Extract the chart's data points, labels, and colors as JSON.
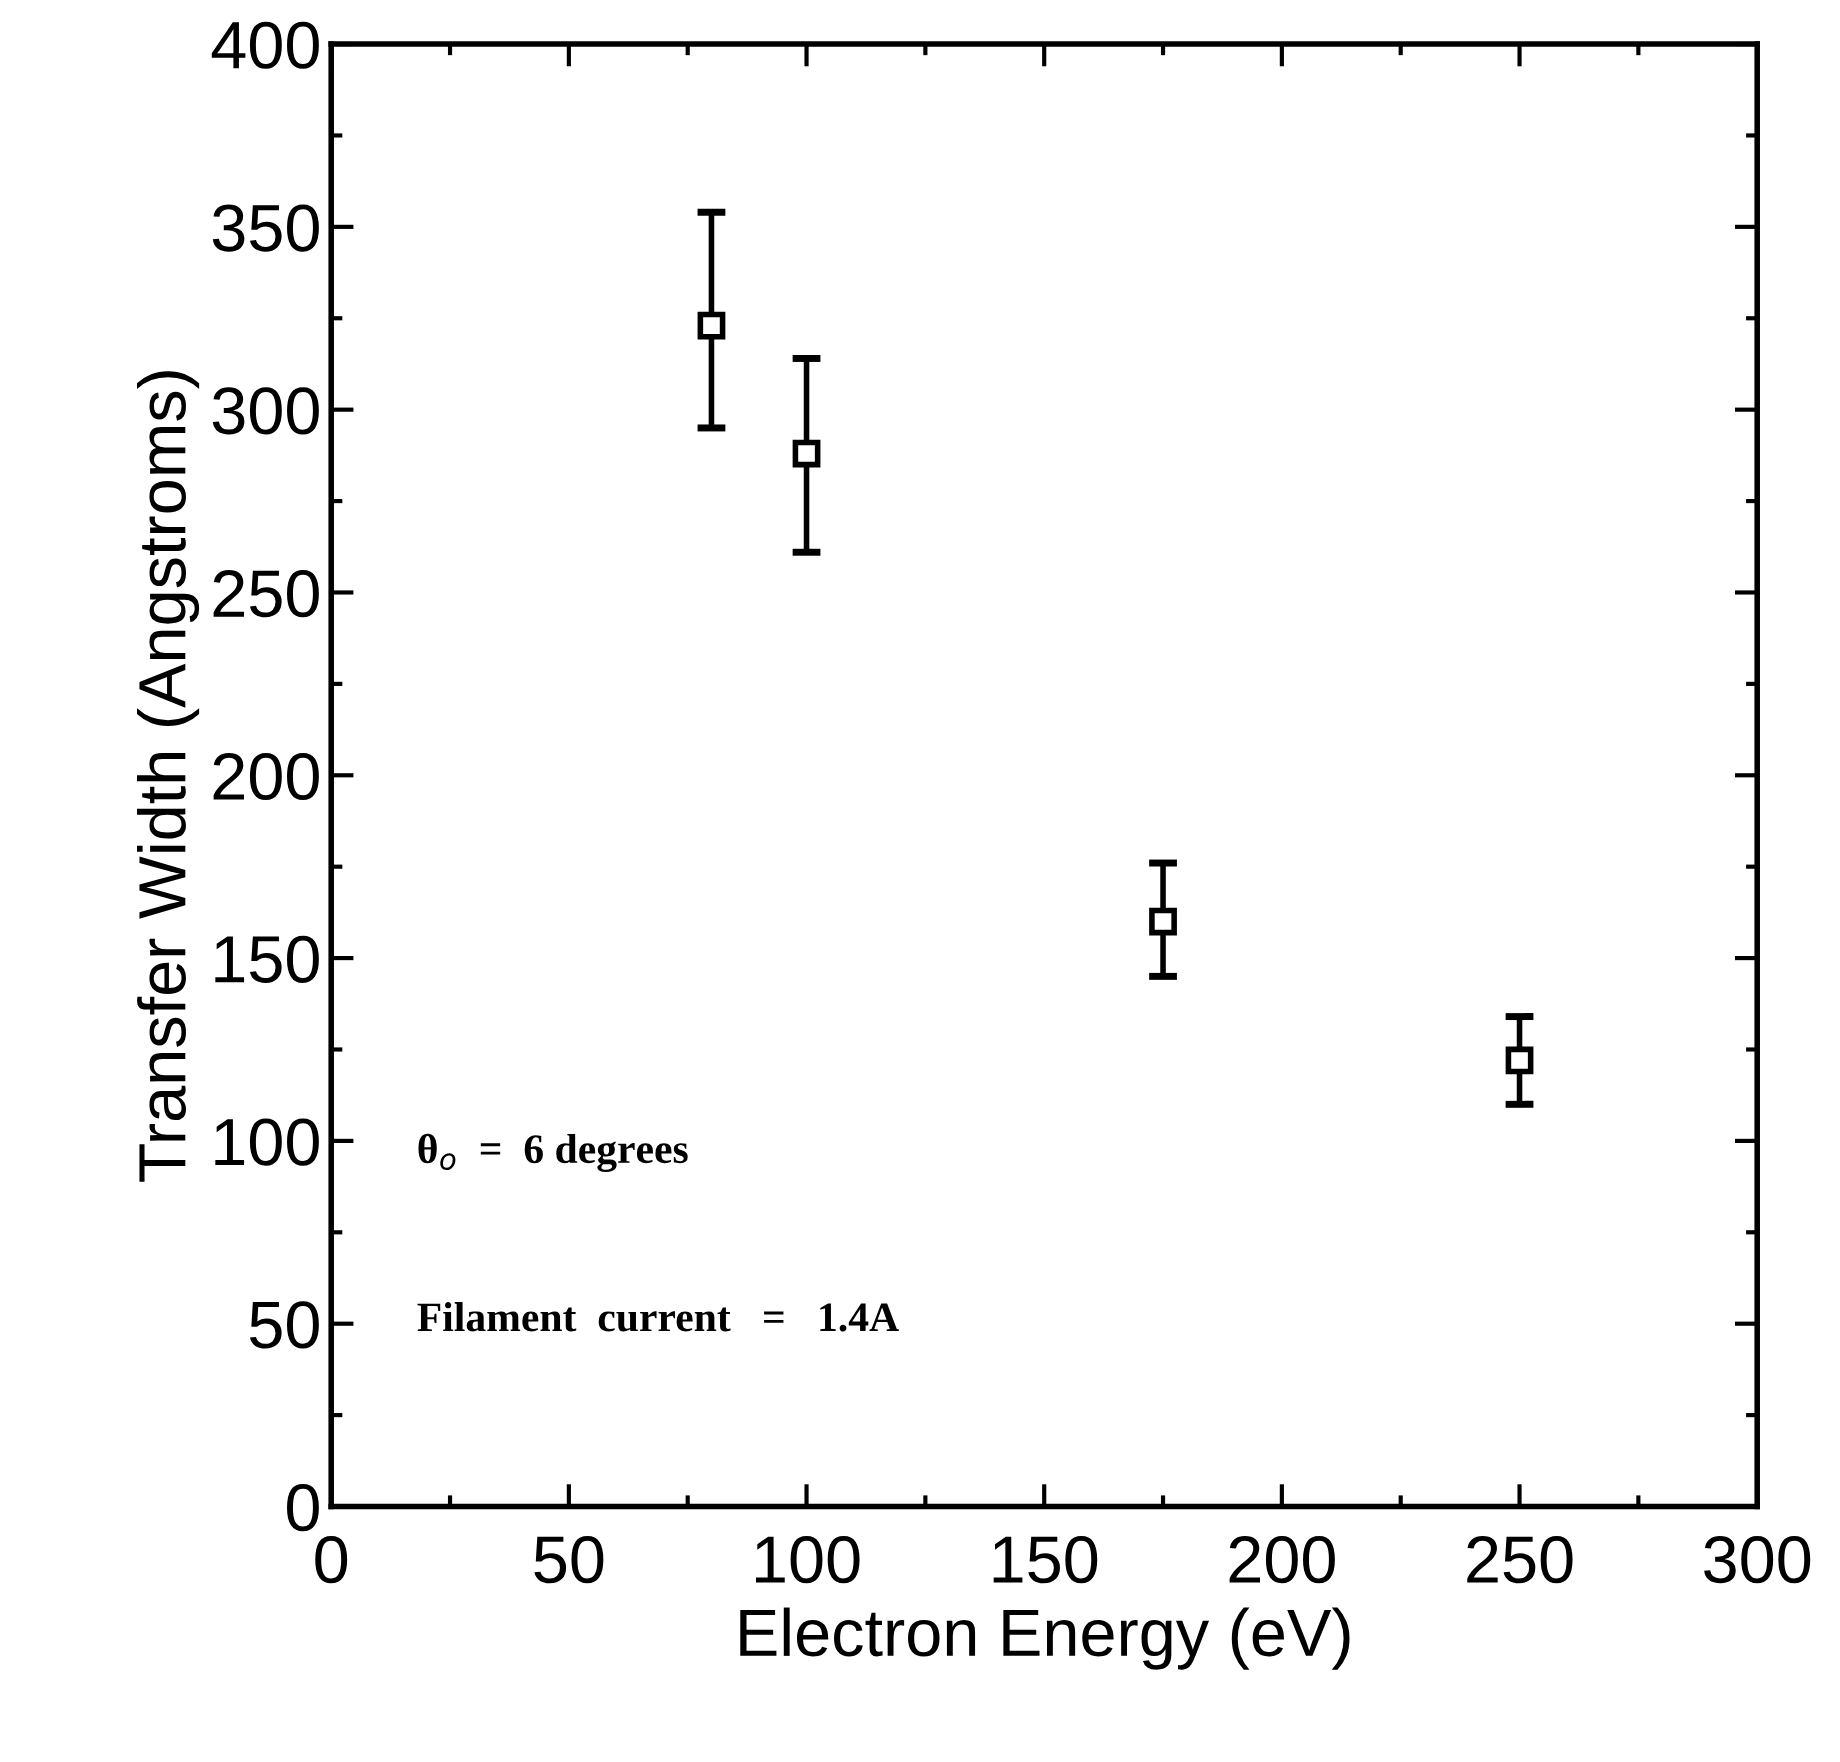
{
  "chart_data": {
    "type": "scatter",
    "xlabel": "Electron Energy (eV)",
    "ylabel": "Transfer Width (Angstroms)",
    "x": [
      80,
      100,
      175,
      250
    ],
    "series": [
      {
        "color": "#000000",
        "values": [
          323,
          288,
          160,
          122
        ],
        "errors": [
          [
            295,
            354
          ],
          [
            261,
            314
          ],
          [
            145,
            176
          ],
          [
            110,
            134
          ]
        ]
      }
    ],
    "xlim": [
      0,
      300
    ],
    "ylim": [
      0,
      400
    ],
    "xticks": [
      0,
      50,
      100,
      150,
      200,
      250,
      300
    ],
    "yticks": [
      0,
      50,
      100,
      150,
      200,
      250,
      300,
      350,
      400
    ],
    "marker": "square",
    "grid": false,
    "annotations": [
      {
        "text": "θ$_{o}$  =  6 degrees"
      },
      {
        "text": "Filament  current   =   1.4A"
      }
    ]
  }
}
